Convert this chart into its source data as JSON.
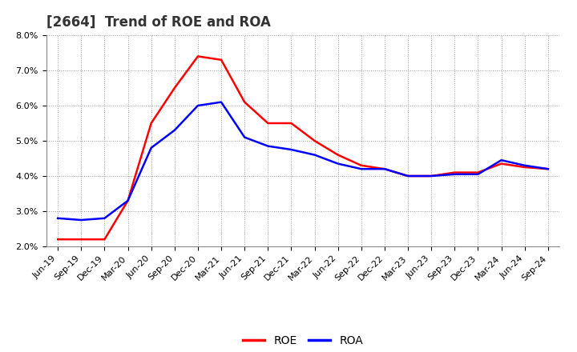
{
  "title": "[2664]  Trend of ROE and ROA",
  "x_labels": [
    "Jun-19",
    "Sep-19",
    "Dec-19",
    "Mar-20",
    "Jun-20",
    "Sep-20",
    "Dec-20",
    "Mar-21",
    "Jun-21",
    "Sep-21",
    "Dec-21",
    "Mar-22",
    "Jun-22",
    "Sep-22",
    "Dec-22",
    "Mar-23",
    "Jun-23",
    "Sep-23",
    "Dec-23",
    "Mar-24",
    "Jun-24",
    "Sep-24"
  ],
  "roe": [
    2.2,
    2.2,
    2.2,
    3.3,
    5.5,
    6.5,
    7.4,
    7.3,
    6.1,
    5.5,
    5.5,
    5.0,
    4.6,
    4.3,
    4.2,
    4.0,
    4.0,
    4.1,
    4.1,
    4.35,
    4.25,
    4.2
  ],
  "roa": [
    2.8,
    2.75,
    2.8,
    3.3,
    4.8,
    5.3,
    6.0,
    6.1,
    5.1,
    4.85,
    4.75,
    4.6,
    4.35,
    4.2,
    4.2,
    4.0,
    4.0,
    4.05,
    4.05,
    4.45,
    4.3,
    4.2
  ],
  "roe_color": "#FF0000",
  "roa_color": "#0000FF",
  "ylim": [
    2.0,
    8.0
  ],
  "yticks": [
    2.0,
    3.0,
    4.0,
    5.0,
    6.0,
    7.0,
    8.0
  ],
  "background_color": "#FFFFFF",
  "plot_bg_color": "#FFFFFF",
  "grid_color": "#999999",
  "line_width": 1.8,
  "legend_labels": [
    "ROE",
    "ROA"
  ],
  "title_fontsize": 12,
  "tick_fontsize": 8,
  "legend_fontsize": 10
}
